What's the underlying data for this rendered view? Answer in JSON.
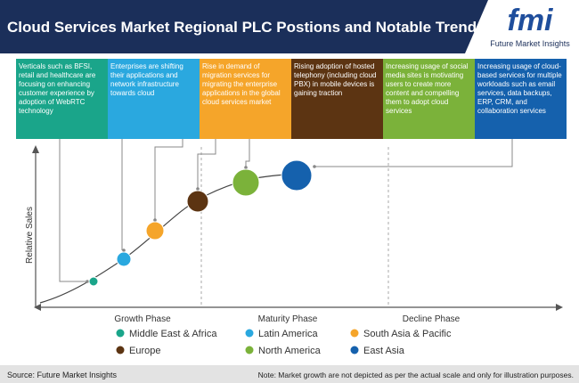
{
  "header": {
    "title": "Cloud Services Market Regional PLC Postions and Notable Trends"
  },
  "logo": {
    "mark": "fmi",
    "name": "Future Market Insights"
  },
  "trends": [
    "Verticals such as BFSI, retail and healthcare are focusing on enhancing customer experience by adoption of WebRTC technology",
    "Enterprises are shifting their applications and network infrastructure towards cloud",
    "Rise in demand of migration services for migrating the enterprise applications in the global cloud services market",
    "Rising adoption of hosted telephony (including cloud PBX) in mobile devices is gaining traction",
    "Increasing usage of social media sites is motivating users to create more content and compelling them to adopt cloud services",
    "Increasing usage of cloud-based services for multiple workloads such as email services, data backups, ERP, CRM, and collaboration services"
  ],
  "axis": {
    "y_label": "Relative Sales"
  },
  "phases": [
    "Growth Phase",
    "Maturity Phase",
    "Decline Phase"
  ],
  "legend": [
    "Middle East & Africa",
    "Latin America",
    "South Asia & Pacific",
    "Europe",
    "North America",
    "East Asia"
  ],
  "footer": {
    "source": "Source: Future Market Insights",
    "note": "Note: Market growth are not depicted as per the actual scale and only for illustration purposes."
  }
}
